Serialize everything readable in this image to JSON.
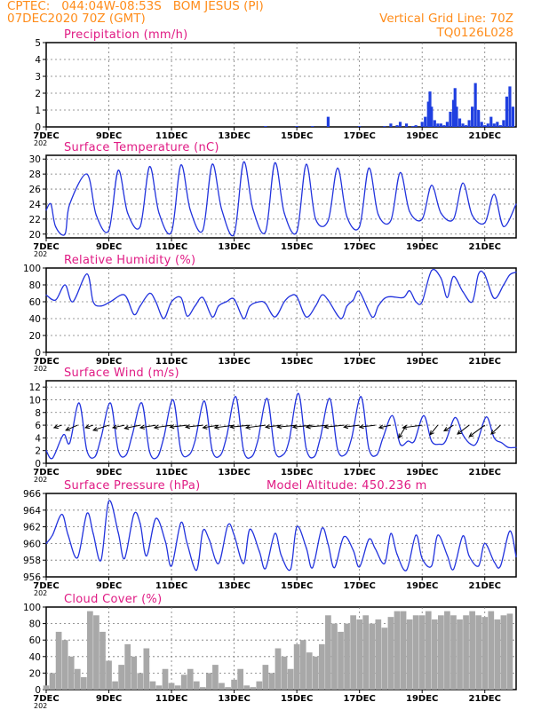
{
  "header": {
    "station_line": "CPTEC:   044:04W-08:53S   BOM JESUS (PI)",
    "date_line": "07DEC2020 70Z (GMT)",
    "grid_note": "Vertical Grid Line: 70Z",
    "model_code": "TQ0126L028"
  },
  "colors": {
    "header_text": "#ff8c1a",
    "panel_title": "#e01b84",
    "series_line": "#2233dd",
    "precip_bar": "#1f3fe0",
    "cloud_bar": "#a8a8a8",
    "wind_arrow": "#000000",
    "grid": "#777777"
  },
  "x_axis": {
    "days": [
      "7DEC",
      "9DEC",
      "11DEC",
      "13DEC",
      "15DEC",
      "17DEC",
      "19DEC",
      "21DEC"
    ],
    "day_offsets": [
      0,
      2,
      4,
      6,
      8,
      10,
      12,
      14
    ],
    "range_days": [
      0,
      15
    ],
    "partial_label": "202"
  },
  "chart_data": [
    {
      "id": "precip",
      "type": "bar",
      "title": "Precipitation (mm/h)",
      "ylim": [
        0,
        5
      ],
      "yticks": [
        0,
        1,
        2,
        3,
        4,
        5
      ],
      "grid": true,
      "x_units": "days since 07DEC",
      "x": [
        0.1,
        0.5,
        1.0,
        1.5,
        2.0,
        2.5,
        3.0,
        3.5,
        4.0,
        4.5,
        5.0,
        5.5,
        6.0,
        6.5,
        7.0,
        7.5,
        8.0,
        8.5,
        9.0,
        9.5,
        10.0,
        10.5,
        10.8,
        11.0,
        11.2,
        11.3,
        11.5,
        11.7,
        11.8,
        12.0,
        12.1,
        12.2,
        12.25,
        12.3,
        12.4,
        12.5,
        12.6,
        12.7,
        12.8,
        12.9,
        13.0,
        13.05,
        13.1,
        13.2,
        13.3,
        13.4,
        13.5,
        13.6,
        13.7,
        13.8,
        13.9,
        14.0,
        14.1,
        14.2,
        14.3,
        14.4,
        14.5,
        14.6,
        14.7,
        14.8,
        14.9
      ],
      "values": [
        0,
        0,
        0,
        0,
        0,
        0,
        0,
        0,
        0,
        0,
        0,
        0,
        0,
        0,
        0.05,
        0,
        0.05,
        0.05,
        0.6,
        0,
        0.05,
        0,
        0.05,
        0.2,
        0.1,
        0.3,
        0.2,
        0.05,
        0.1,
        0.3,
        0.6,
        1.5,
        2.1,
        1.2,
        0.4,
        0.2,
        0.2,
        0.1,
        0.3,
        0.9,
        1.6,
        2.3,
        1.2,
        0.5,
        0.2,
        0.1,
        0.4,
        1.2,
        2.6,
        1.0,
        0.3,
        0.1,
        0.2,
        0.6,
        0.2,
        0.3,
        0.1,
        0.4,
        1.8,
        2.4,
        1.2
      ]
    },
    {
      "id": "temperature",
      "type": "line",
      "title": "Surface Temperature (nC)",
      "ylim": [
        19.5,
        30.5
      ],
      "yticks": [
        20,
        22,
        24,
        26,
        28,
        30
      ],
      "grid": true,
      "x_units": "days since 07DEC",
      "x": [
        0,
        0.15,
        0.3,
        0.6,
        0.75,
        1.3,
        1.6,
        2.0,
        2.3,
        2.6,
        3.0,
        3.3,
        3.6,
        4.0,
        4.3,
        4.6,
        5.0,
        5.3,
        5.6,
        6.0,
        6.3,
        6.6,
        7.0,
        7.3,
        7.6,
        8.0,
        8.3,
        8.6,
        9.0,
        9.3,
        9.6,
        10.0,
        10.3,
        10.6,
        11.0,
        11.3,
        11.6,
        12.0,
        12.3,
        12.6,
        13.0,
        13.3,
        13.6,
        14.0,
        14.3,
        14.6,
        15.0
      ],
      "values": [
        23.2,
        24.0,
        21.0,
        20.0,
        24.0,
        28.0,
        22.5,
        20.5,
        28.5,
        22.8,
        21.0,
        29.0,
        22.8,
        20.3,
        29.2,
        23.2,
        20.5,
        29.3,
        23.3,
        20.0,
        29.6,
        23.3,
        20.3,
        29.5,
        22.8,
        20.3,
        29.3,
        22.0,
        21.8,
        28.8,
        22.3,
        21.0,
        28.8,
        22.6,
        21.8,
        28.2,
        23.0,
        22.0,
        26.5,
        22.8,
        22.0,
        26.8,
        22.5,
        21.5,
        25.3,
        21.0,
        24.0
      ]
    },
    {
      "id": "humidity",
      "type": "line",
      "title": "Relative Humidity (%)",
      "ylim": [
        0,
        100
      ],
      "yticks": [
        0,
        20,
        40,
        60,
        80,
        100
      ],
      "grid": true,
      "x_units": "days since 07DEC",
      "x": [
        0,
        0.3,
        0.6,
        0.85,
        1.3,
        1.5,
        1.75,
        2.05,
        2.5,
        2.8,
        3.0,
        3.3,
        3.5,
        3.75,
        4.0,
        4.3,
        4.5,
        4.75,
        5.0,
        5.3,
        5.5,
        5.75,
        6.0,
        6.3,
        6.5,
        6.8,
        7.0,
        7.3,
        7.6,
        7.8,
        8.0,
        8.3,
        8.6,
        8.8,
        9.0,
        9.4,
        9.6,
        9.8,
        10.0,
        10.4,
        10.6,
        10.8,
        11.0,
        11.4,
        11.6,
        11.8,
        12.0,
        12.3,
        12.6,
        12.8,
        13.0,
        13.3,
        13.6,
        13.8,
        14.0,
        14.3,
        14.6,
        14.8,
        15.0
      ],
      "values": [
        68,
        62,
        80,
        60,
        93,
        60,
        55,
        60,
        68,
        45,
        55,
        70,
        60,
        40,
        60,
        65,
        43,
        55,
        65,
        42,
        55,
        60,
        63,
        40,
        55,
        60,
        58,
        42,
        60,
        67,
        66,
        42,
        55,
        68,
        62,
        40,
        55,
        62,
        72,
        42,
        55,
        64,
        66,
        65,
        73,
        60,
        60,
        97,
        88,
        65,
        90,
        72,
        60,
        93,
        92,
        64,
        80,
        92,
        95
      ]
    },
    {
      "id": "wind",
      "type": "line",
      "title": "Surface Wind (m/s)",
      "ylim": [
        0,
        13
      ],
      "yticks": [
        0,
        2,
        4,
        6,
        8,
        10,
        12
      ],
      "grid": true,
      "x_units": "days since 07DEC",
      "x": [
        0,
        0.2,
        0.55,
        0.75,
        1.05,
        1.3,
        1.55,
        1.75,
        2.05,
        2.3,
        2.55,
        2.75,
        3.05,
        3.3,
        3.55,
        3.75,
        4.05,
        4.3,
        4.55,
        4.75,
        5.05,
        5.3,
        5.55,
        5.75,
        6.05,
        6.3,
        6.55,
        6.75,
        7.05,
        7.3,
        7.55,
        7.75,
        8.05,
        8.3,
        8.55,
        8.75,
        9.05,
        9.3,
        9.55,
        9.75,
        10.05,
        10.3,
        10.55,
        10.75,
        11.05,
        11.3,
        11.55,
        11.75,
        12.05,
        12.3,
        12.55,
        12.75,
        13.05,
        13.3,
        13.55,
        13.75,
        14.05,
        14.3,
        14.55,
        14.75,
        15.0
      ],
      "values": [
        2,
        0.8,
        4.5,
        3.2,
        9.5,
        2.0,
        1.0,
        4.0,
        9.5,
        2.0,
        1.3,
        4.5,
        9.5,
        1.8,
        1.0,
        4.0,
        10.0,
        2.0,
        1.3,
        3.5,
        9.8,
        2.0,
        1.2,
        4.0,
        10.5,
        2.0,
        1.0,
        3.5,
        10.2,
        2.0,
        1.3,
        3.5,
        11.0,
        2.3,
        1.0,
        4.0,
        10.2,
        2.2,
        1.4,
        4.0,
        10.5,
        2.3,
        1.3,
        4.0,
        7.5,
        3.0,
        3.5,
        3.5,
        7.5,
        3.5,
        3.0,
        3.5,
        7.2,
        4.5,
        3.0,
        3.3,
        7.3,
        4.0,
        3.2,
        2.5,
        2.5
      ],
      "arrows_x": [
        0.5,
        1.0,
        1.5,
        2.0,
        2.5,
        3.0,
        3.5,
        4.0,
        4.5,
        5.0,
        5.5,
        6.0,
        6.5,
        7.0,
        7.5,
        8.0,
        8.5,
        9.0,
        9.5,
        10.0,
        10.5,
        11.0,
        11.5,
        12.0,
        12.5,
        13.0,
        13.5,
        14.0,
        14.5
      ],
      "arrows_dx": [
        -1.0,
        -1.5,
        -1.0,
        -2.0,
        -1.5,
        -2.0,
        -2.0,
        -2.2,
        -2.2,
        -2.2,
        -2.0,
        -2.5,
        -2.5,
        -2.5,
        -2.0,
        -2.5,
        -2.5,
        -2.8,
        -2.5,
        -2.0,
        -2.0,
        -1.5,
        -1.0,
        -2.5,
        -1.0,
        -1.2,
        -1.5,
        -2.0,
        -1.2
      ],
      "arrows_dy": [
        -0.4,
        -0.8,
        -0.4,
        -0.8,
        -0.4,
        -0.5,
        -0.4,
        -0.4,
        -0.3,
        -0.3,
        -0.4,
        -0.4,
        -0.3,
        -0.4,
        -0.3,
        -0.3,
        -0.3,
        -0.3,
        -0.3,
        -0.3,
        -0.3,
        -0.4,
        -2.0,
        -0.4,
        -1.5,
        -0.9,
        -1.4,
        -1.8,
        -1.4
      ],
      "arrow_baseline": 6
    },
    {
      "id": "pressure",
      "type": "line",
      "title": "Surface Pressure (hPa)",
      "annotation": "Model Altitude: 450.236 m",
      "ylim": [
        956,
        966
      ],
      "yticks": [
        956,
        958,
        960,
        962,
        964,
        966
      ],
      "grid": true,
      "x_units": "days since 07DEC",
      "x": [
        0,
        0.2,
        0.5,
        0.7,
        1.0,
        1.3,
        1.5,
        1.75,
        2.0,
        2.3,
        2.5,
        2.8,
        3.0,
        3.2,
        3.5,
        3.8,
        4.0,
        4.3,
        4.5,
        4.8,
        5.0,
        5.2,
        5.5,
        5.8,
        6.0,
        6.3,
        6.5,
        6.8,
        7.0,
        7.3,
        7.5,
        7.8,
        8.0,
        8.3,
        8.5,
        8.8,
        9.0,
        9.2,
        9.5,
        9.8,
        10.0,
        10.3,
        10.5,
        10.8,
        11.0,
        11.2,
        11.5,
        11.8,
        12.0,
        12.3,
        12.5,
        12.8,
        13.0,
        13.3,
        13.5,
        13.8,
        14.0,
        14.3,
        14.5,
        14.8,
        15.0
      ],
      "values": [
        960,
        961,
        963.5,
        961,
        958.3,
        963.6,
        961.2,
        958.0,
        965.1,
        961.3,
        958.2,
        963.5,
        962.4,
        958.5,
        963.0,
        960.3,
        957.3,
        962.5,
        960.0,
        956.8,
        961.5,
        960.5,
        957.6,
        962.2,
        961.0,
        957.6,
        961.7,
        959.1,
        957.0,
        961.2,
        958.6,
        956.9,
        962.0,
        959.5,
        957.1,
        961.8,
        959.9,
        957.1,
        960.8,
        959.2,
        957.2,
        960.5,
        959.4,
        957.6,
        961.2,
        958.7,
        956.8,
        961.0,
        958.2,
        957.3,
        961.0,
        958.6,
        956.9,
        960.9,
        958.5,
        957.3,
        960.0,
        957.8,
        957.3,
        961.5,
        958.4
      ]
    },
    {
      "id": "cloud",
      "type": "bar",
      "title": "Cloud Cover (%)",
      "ylim": [
        0,
        100
      ],
      "yticks": [
        0,
        20,
        40,
        60,
        80,
        100
      ],
      "grid": true,
      "x_units": "days since 07DEC",
      "x": [
        0,
        0.2,
        0.4,
        0.6,
        0.8,
        1.0,
        1.2,
        1.4,
        1.6,
        1.8,
        2.0,
        2.2,
        2.4,
        2.6,
        2.8,
        3.0,
        3.2,
        3.4,
        3.6,
        3.8,
        4.0,
        4.2,
        4.4,
        4.6,
        4.8,
        5.0,
        5.2,
        5.4,
        5.6,
        5.8,
        6.0,
        6.2,
        6.4,
        6.6,
        6.8,
        7.0,
        7.2,
        7.4,
        7.6,
        7.8,
        8.0,
        8.2,
        8.4,
        8.6,
        8.8,
        9.0,
        9.2,
        9.4,
        9.6,
        9.8,
        10.0,
        10.2,
        10.4,
        10.6,
        10.8,
        11.0,
        11.2,
        11.4,
        11.6,
        11.8,
        12.0,
        12.2,
        12.4,
        12.6,
        12.8,
        13.0,
        13.2,
        13.4,
        13.6,
        13.8,
        14.0,
        14.2,
        14.4,
        14.6,
        14.8
      ],
      "values": [
        5,
        20,
        70,
        60,
        40,
        25,
        15,
        95,
        90,
        70,
        35,
        10,
        30,
        55,
        40,
        20,
        50,
        10,
        5,
        25,
        8,
        5,
        18,
        25,
        10,
        3,
        20,
        30,
        8,
        3,
        12,
        25,
        5,
        3,
        10,
        30,
        20,
        50,
        40,
        25,
        55,
        60,
        45,
        40,
        55,
        90,
        80,
        70,
        80,
        90,
        85,
        90,
        80,
        85,
        75,
        88,
        95,
        95,
        85,
        90,
        90,
        95,
        85,
        90,
        95,
        90,
        85,
        90,
        95,
        90,
        88,
        95,
        85,
        90,
        92
      ]
    }
  ]
}
